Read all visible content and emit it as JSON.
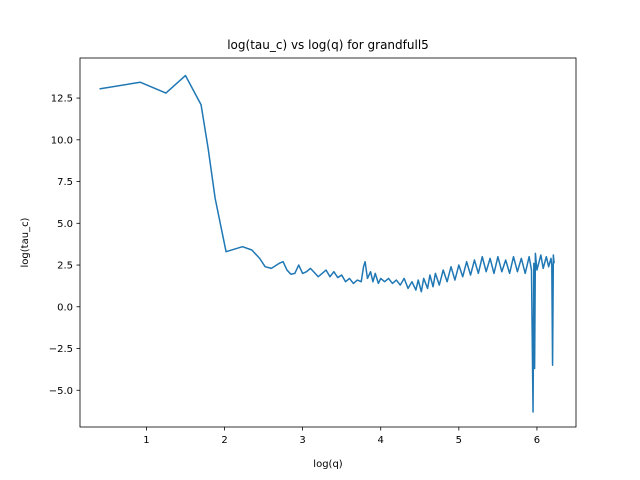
{
  "chart_data": {
    "type": "line",
    "title": "log(tau_c) vs log(q) for grandfull5",
    "xlabel": "log(q)",
    "ylabel": "log(tau_c)",
    "xlim": [
      0.15,
      6.5
    ],
    "ylim": [
      -7.2,
      14.9
    ],
    "xticks": [
      {
        "value": 1,
        "label": "1"
      },
      {
        "value": 2,
        "label": "2"
      },
      {
        "value": 3,
        "label": "3"
      },
      {
        "value": 4,
        "label": "4"
      },
      {
        "value": 5,
        "label": "5"
      },
      {
        "value": 6,
        "label": "6"
      }
    ],
    "yticks": [
      {
        "value": -5.0,
        "label": "−5.0"
      },
      {
        "value": -2.5,
        "label": "−2.5"
      },
      {
        "value": 0.0,
        "label": "0.0"
      },
      {
        "value": 2.5,
        "label": "2.5"
      },
      {
        "value": 5.0,
        "label": "5.0"
      },
      {
        "value": 7.5,
        "label": "7.5"
      },
      {
        "value": 10.0,
        "label": "10.0"
      },
      {
        "value": 12.5,
        "label": "12.5"
      }
    ],
    "grid": false,
    "series": [
      {
        "color": "#1f77b4",
        "points": [
          [
            0.4,
            13.05
          ],
          [
            0.92,
            13.45
          ],
          [
            1.25,
            12.8
          ],
          [
            1.5,
            13.85
          ],
          [
            1.7,
            12.1
          ],
          [
            1.79,
            9.5
          ],
          [
            1.88,
            6.5
          ],
          [
            2.02,
            3.3
          ],
          [
            2.23,
            3.6
          ],
          [
            2.35,
            3.4
          ],
          [
            2.45,
            2.9
          ],
          [
            2.52,
            2.4
          ],
          [
            2.6,
            2.3
          ],
          [
            2.7,
            2.6
          ],
          [
            2.75,
            2.7
          ],
          [
            2.8,
            2.2
          ],
          [
            2.85,
            1.95
          ],
          [
            2.9,
            2.0
          ],
          [
            2.95,
            2.5
          ],
          [
            3.0,
            2.0
          ],
          [
            3.05,
            2.1
          ],
          [
            3.1,
            2.3
          ],
          [
            3.15,
            2.05
          ],
          [
            3.2,
            1.8
          ],
          [
            3.25,
            2.0
          ],
          [
            3.3,
            2.2
          ],
          [
            3.35,
            1.8
          ],
          [
            3.4,
            2.1
          ],
          [
            3.45,
            1.75
          ],
          [
            3.5,
            1.9
          ],
          [
            3.55,
            1.5
          ],
          [
            3.6,
            1.7
          ],
          [
            3.65,
            1.4
          ],
          [
            3.7,
            1.6
          ],
          [
            3.75,
            1.5
          ],
          [
            3.78,
            2.4
          ],
          [
            3.8,
            2.7
          ],
          [
            3.83,
            1.7
          ],
          [
            3.87,
            2.1
          ],
          [
            3.9,
            1.5
          ],
          [
            3.93,
            2.0
          ],
          [
            3.97,
            1.4
          ],
          [
            4.0,
            1.7
          ],
          [
            4.05,
            1.5
          ],
          [
            4.1,
            1.7
          ],
          [
            4.15,
            1.4
          ],
          [
            4.2,
            1.6
          ],
          [
            4.25,
            1.3
          ],
          [
            4.3,
            1.7
          ],
          [
            4.35,
            1.1
          ],
          [
            4.4,
            1.5
          ],
          [
            4.45,
            1.0
          ],
          [
            4.48,
            1.6
          ],
          [
            4.52,
            0.9
          ],
          [
            4.55,
            1.7
          ],
          [
            4.6,
            1.1
          ],
          [
            4.63,
            1.9
          ],
          [
            4.67,
            1.2
          ],
          [
            4.7,
            2.0
          ],
          [
            4.75,
            1.3
          ],
          [
            4.8,
            2.2
          ],
          [
            4.85,
            1.5
          ],
          [
            4.9,
            2.4
          ],
          [
            4.95,
            1.6
          ],
          [
            5.0,
            2.5
          ],
          [
            5.05,
            1.8
          ],
          [
            5.1,
            2.7
          ],
          [
            5.15,
            1.9
          ],
          [
            5.2,
            2.8
          ],
          [
            5.25,
            2.0
          ],
          [
            5.3,
            3.0
          ],
          [
            5.35,
            2.1
          ],
          [
            5.4,
            2.9
          ],
          [
            5.45,
            2.0
          ],
          [
            5.5,
            3.0
          ],
          [
            5.55,
            2.1
          ],
          [
            5.6,
            2.8
          ],
          [
            5.65,
            2.0
          ],
          [
            5.7,
            3.0
          ],
          [
            5.75,
            2.1
          ],
          [
            5.8,
            2.9
          ],
          [
            5.85,
            2.0
          ],
          [
            5.9,
            3.0
          ],
          [
            5.93,
            2.2
          ],
          [
            5.95,
            -6.3
          ],
          [
            5.96,
            2.6
          ],
          [
            5.97,
            -3.7
          ],
          [
            5.98,
            3.2
          ],
          [
            6.0,
            2.2
          ],
          [
            6.05,
            3.1
          ],
          [
            6.08,
            2.3
          ],
          [
            6.12,
            3.0
          ],
          [
            6.15,
            2.4
          ],
          [
            6.18,
            2.9
          ],
          [
            6.19,
            2.5
          ],
          [
            6.2,
            -3.5
          ],
          [
            6.21,
            3.1
          ],
          [
            6.22,
            2.6
          ]
        ]
      }
    ]
  }
}
